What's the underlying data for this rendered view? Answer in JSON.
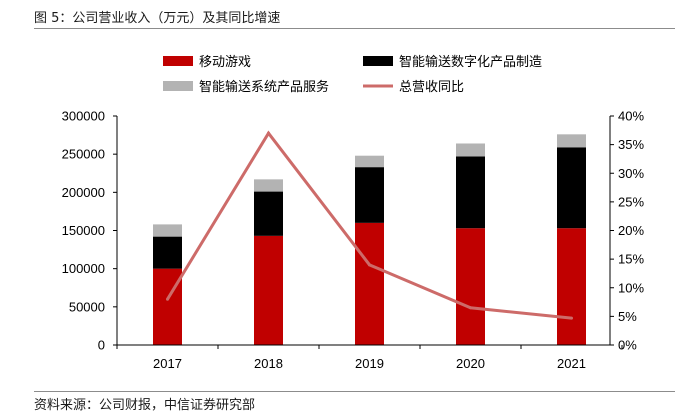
{
  "figure_title": "图 5：公司营业收入（万元）及其同比增速",
  "source_note": "资料来源：公司财报，中信证券研究部",
  "chart_data": {
    "type": "bar",
    "stacked": true,
    "title": "公司营业收入（万元）及其同比增速",
    "categories": [
      "2017",
      "2018",
      "2019",
      "2020",
      "2021"
    ],
    "series": [
      {
        "name": "移动游戏",
        "kind": "bar",
        "axis": "left",
        "color": "#c00000",
        "values": [
          100000,
          143000,
          160000,
          153000,
          153000
        ]
      },
      {
        "name": "智能输送数字化产品制造",
        "kind": "bar",
        "axis": "left",
        "color": "#000000",
        "values": [
          42000,
          58000,
          73000,
          94000,
          106000
        ]
      },
      {
        "name": "智能输送系统产品服务",
        "kind": "bar",
        "axis": "left",
        "color": "#b3b3b3",
        "values": [
          16000,
          16000,
          15000,
          17000,
          17000
        ]
      },
      {
        "name": "总营收同比",
        "kind": "line",
        "axis": "right",
        "color": "#cd6b69",
        "values": [
          0.08,
          0.37,
          0.14,
          0.065,
          0.047
        ]
      }
    ],
    "y_left": {
      "min": 0,
      "max": 300000,
      "ticks": [
        "0",
        "50000",
        "100000",
        "150000",
        "200000",
        "250000",
        "300000"
      ]
    },
    "y_right": {
      "min": 0,
      "max": 0.4,
      "ticks": [
        "0%",
        "5%",
        "10%",
        "15%",
        "20%",
        "25%",
        "30%",
        "35%",
        "40%"
      ]
    },
    "legend": "top",
    "grid": false
  }
}
